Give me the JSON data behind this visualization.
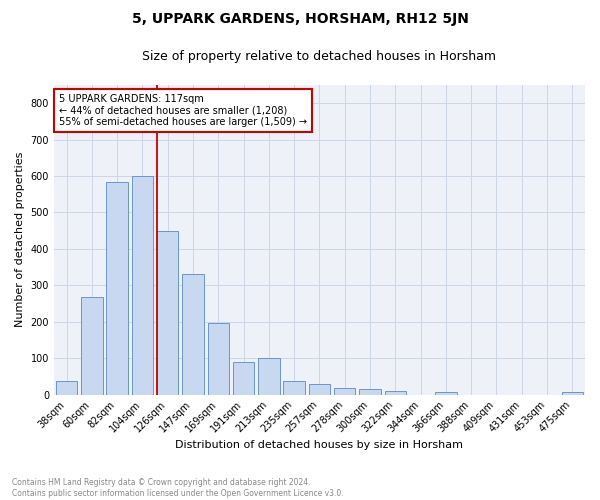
{
  "title": "5, UPPARK GARDENS, HORSHAM, RH12 5JN",
  "subtitle": "Size of property relative to detached houses in Horsham",
  "xlabel": "Distribution of detached houses by size in Horsham",
  "ylabel": "Number of detached properties",
  "categories": [
    "38sqm",
    "60sqm",
    "82sqm",
    "104sqm",
    "126sqm",
    "147sqm",
    "169sqm",
    "191sqm",
    "213sqm",
    "235sqm",
    "257sqm",
    "278sqm",
    "300sqm",
    "322sqm",
    "344sqm",
    "366sqm",
    "388sqm",
    "409sqm",
    "431sqm",
    "453sqm",
    "475sqm"
  ],
  "values": [
    38,
    267,
    583,
    601,
    450,
    330,
    196,
    90,
    101,
    38,
    30,
    18,
    15,
    10,
    0,
    8,
    0,
    0,
    0,
    0,
    8
  ],
  "bar_color": "#c8d8f0",
  "bar_edge_color": "#5a8ac6",
  "vline_x": 3.58,
  "vline_color": "#cc0000",
  "annotation_title": "5 UPPARK GARDENS: 117sqm",
  "annotation_line1": "← 44% of detached houses are smaller (1,208)",
  "annotation_line2": "55% of semi-detached houses are larger (1,509) →",
  "annotation_box_color": "#cc0000",
  "footer_line1": "Contains HM Land Registry data © Crown copyright and database right 2024.",
  "footer_line2": "Contains public sector information licensed under the Open Government Licence v3.0.",
  "ylim": [
    0,
    850
  ],
  "yticks": [
    0,
    100,
    200,
    300,
    400,
    500,
    600,
    700,
    800
  ],
  "grid_color": "#ccd6e8",
  "background_color": "#eef2f8",
  "title_fontsize": 10,
  "subtitle_fontsize": 9,
  "axis_label_fontsize": 8,
  "tick_fontsize": 7,
  "annotation_fontsize": 7,
  "footer_fontsize": 5.5
}
